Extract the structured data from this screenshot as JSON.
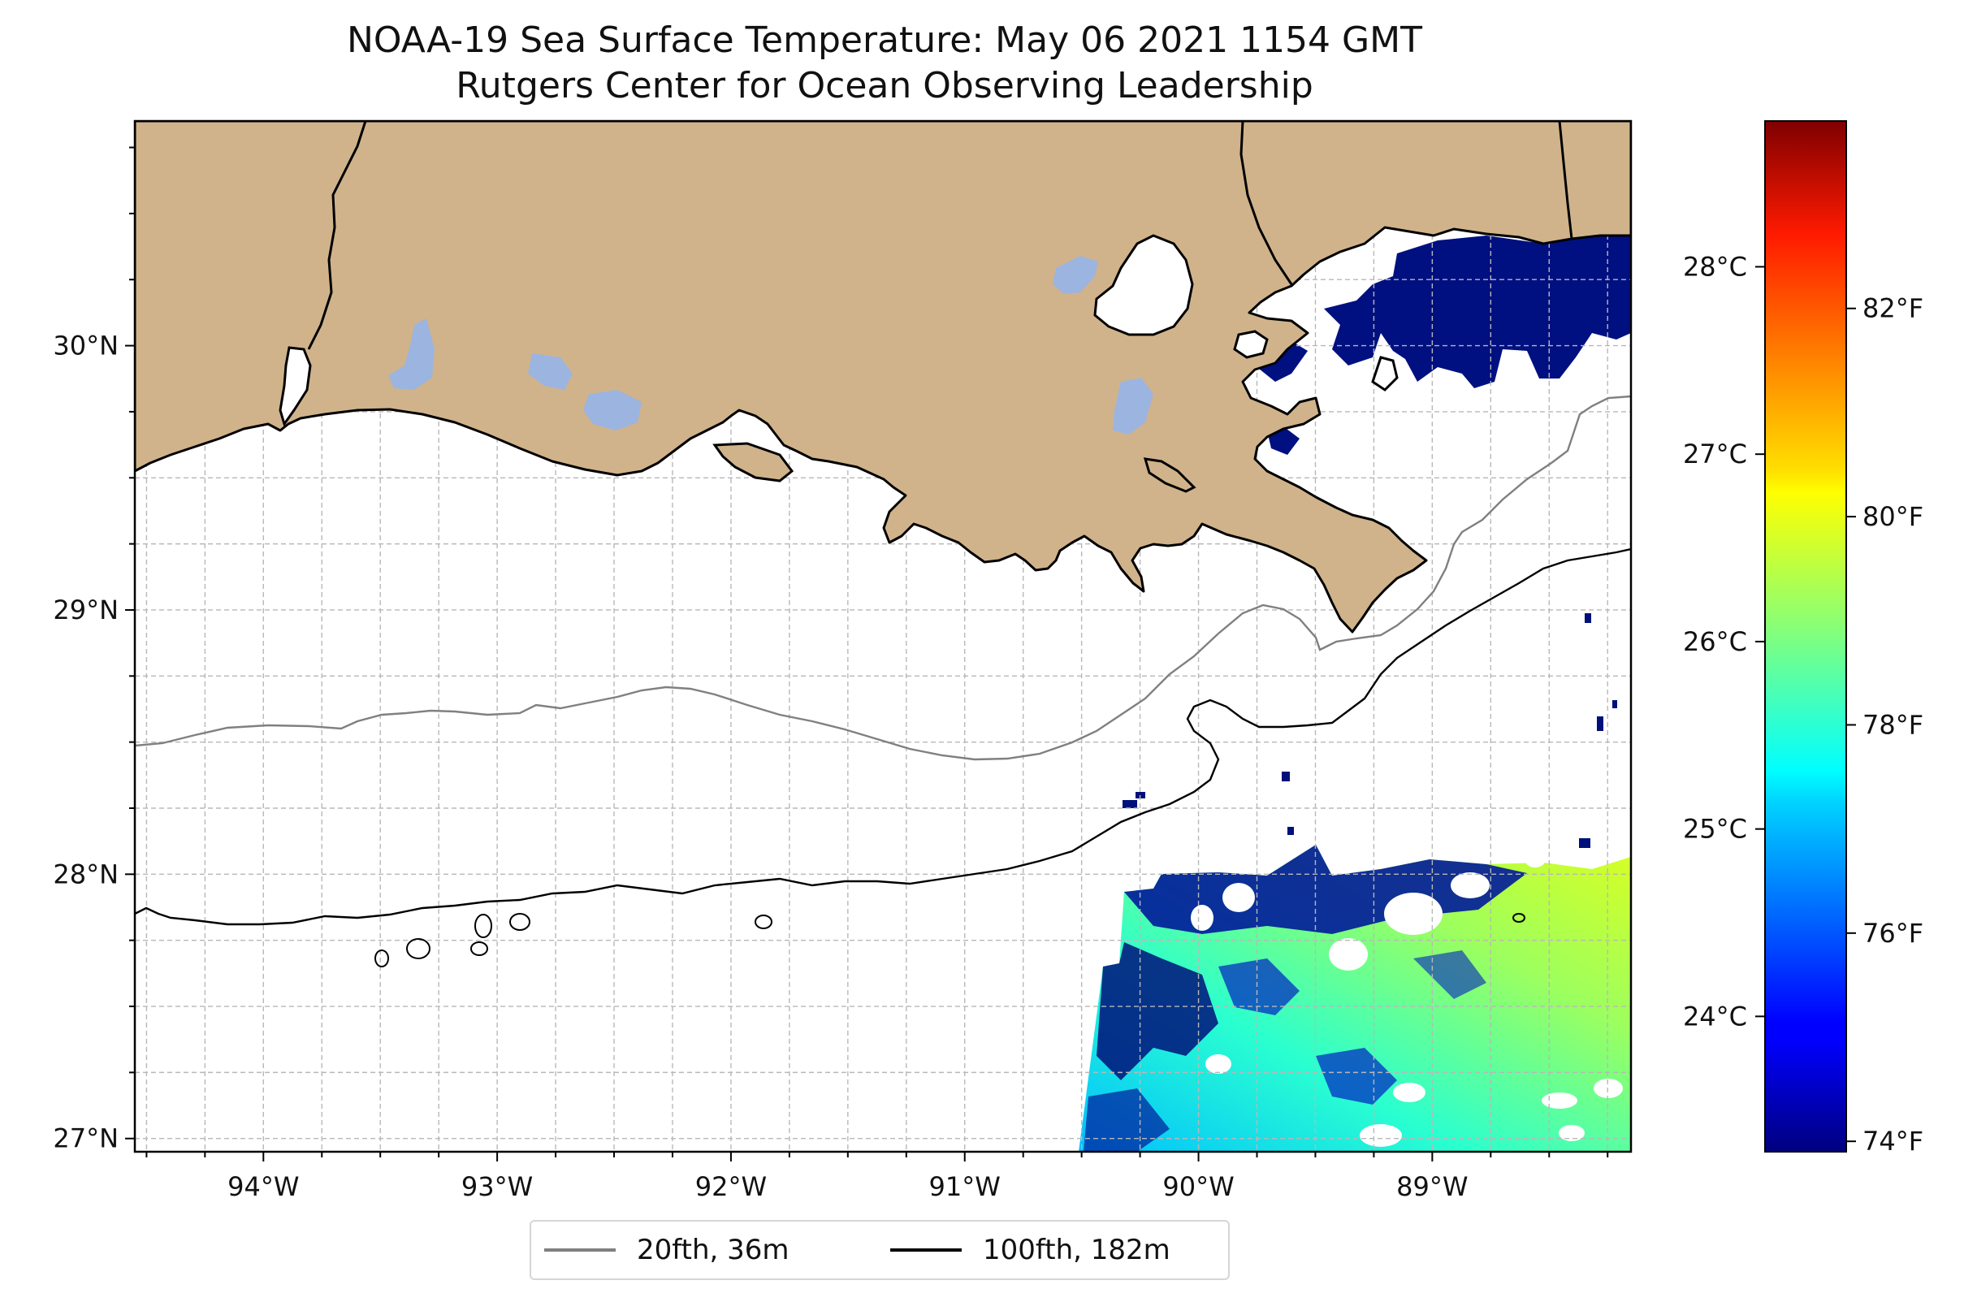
{
  "title": "NOAA-19 Sea Surface Temperature: May 06 2021 1154 GMT",
  "subtitle": "Rutgers Center for Ocean Observing Leadership",
  "map": {
    "lon_range": [
      -94.55,
      -88.15
    ],
    "lat_range": [
      26.95,
      30.85
    ],
    "lon_ticks": [
      {
        "value": -94,
        "label": "94°W"
      },
      {
        "value": -93,
        "label": "93°W"
      },
      {
        "value": -92,
        "label": "92°W"
      },
      {
        "value": -91,
        "label": "91°W"
      },
      {
        "value": -90,
        "label": "90°W"
      },
      {
        "value": -89,
        "label": "89°W"
      }
    ],
    "lat_ticks": [
      {
        "value": 30,
        "label": "30°N"
      },
      {
        "value": 29,
        "label": "29°N"
      },
      {
        "value": 28,
        "label": "28°N"
      },
      {
        "value": 27,
        "label": "27°N"
      }
    ],
    "gridlines": true,
    "land_color": "#d0b38b",
    "lake_color": "#9cb4e0",
    "coastline_color": "#000000"
  },
  "colorbar": {
    "colormap": "jet",
    "celsius_ticks": [
      {
        "value": 24,
        "label": "24°C"
      },
      {
        "value": 25,
        "label": "25°C"
      },
      {
        "value": 26,
        "label": "26°C"
      },
      {
        "value": 27,
        "label": "27°C"
      },
      {
        "value": 28,
        "label": "28°C"
      }
    ],
    "fahrenheit_ticks": [
      {
        "value": 74,
        "label": "74°F"
      },
      {
        "value": 76,
        "label": "76°F"
      },
      {
        "value": 78,
        "label": "78°F"
      },
      {
        "value": 80,
        "label": "80°F"
      },
      {
        "value": 82,
        "label": "82°F"
      }
    ],
    "range_f": [
      73.9,
      83.8
    ]
  },
  "legend": {
    "placement": "bottom-center",
    "items": [
      {
        "label": "20fth, 36m",
        "color": "#808080"
      },
      {
        "label": "100fth, 182m",
        "color": "#000000"
      }
    ]
  }
}
